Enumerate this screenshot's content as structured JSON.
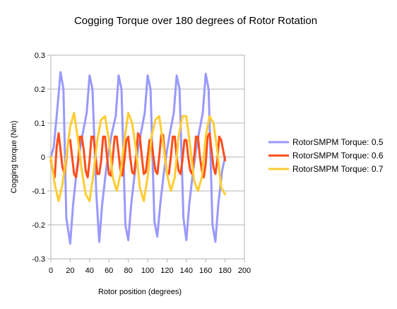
{
  "chart_data": {
    "type": "line",
    "title": "Cogging Torque over 180 degrees of Rotor Rotation",
    "xlabel": "Rotor position (degrees)",
    "ylabel": "Cogging torque (Nm)",
    "xlim": [
      0,
      200
    ],
    "ylim": [
      -0.3,
      0.3
    ],
    "xticks": [
      0,
      20,
      40,
      60,
      80,
      100,
      120,
      140,
      160,
      180,
      200
    ],
    "yticks": [
      0.3,
      0.2,
      0.1,
      0,
      -0.1,
      -0.2,
      -0.3
    ],
    "xtick_labels": [
      "0",
      "20",
      "40",
      "60",
      "80",
      "100",
      "120",
      "140",
      "160",
      "180",
      "200"
    ],
    "ytick_labels": [
      "0.3",
      "0.2",
      "0.1",
      "0",
      "-0.1",
      "-0.2",
      "-0.3"
    ],
    "grid": "horizontal gridlines",
    "legend_position": "right",
    "series": [
      {
        "name": "RotorSMPM Torque: 0.5",
        "color": "#9999ff",
        "x": [
          0,
          3,
          6,
          10,
          13,
          16,
          20,
          23,
          27,
          30,
          33,
          37,
          40,
          43,
          47,
          50,
          53,
          57,
          60,
          63,
          67,
          70,
          73,
          77,
          80,
          83,
          87,
          90,
          93,
          97,
          100,
          103,
          107,
          110,
          113,
          117,
          120,
          123,
          127,
          130,
          133,
          137,
          140,
          143,
          147,
          150,
          153,
          157,
          160,
          163,
          167,
          170,
          173,
          177,
          180
        ],
        "values": [
          0,
          0.03,
          0.12,
          0.25,
          0.2,
          -0.18,
          -0.255,
          -0.14,
          -0.03,
          0.02,
          0.07,
          0.13,
          0.24,
          0.2,
          -0.11,
          -0.25,
          -0.14,
          -0.04,
          0.02,
          0.07,
          0.12,
          0.24,
          0.2,
          -0.2,
          -0.245,
          -0.14,
          -0.04,
          0.02,
          0.07,
          0.13,
          0.24,
          0.2,
          -0.19,
          -0.235,
          -0.14,
          -0.04,
          0.02,
          0.07,
          0.13,
          0.24,
          0.2,
          -0.18,
          -0.245,
          -0.14,
          -0.04,
          0.02,
          0.07,
          0.13,
          0.245,
          0.2,
          -0.2,
          -0.25,
          -0.14,
          -0.04,
          0
        ]
      },
      {
        "name": "RotorSMPM Torque: 0.6",
        "color": "#ff4d1a",
        "x": [
          0,
          2,
          4,
          6,
          8,
          10,
          12,
          14,
          16,
          18,
          20,
          22,
          24,
          26,
          28,
          30,
          32,
          34,
          36,
          38,
          40,
          42,
          44,
          46,
          48,
          50,
          52,
          54,
          56,
          58,
          60,
          62,
          64,
          66,
          68,
          70,
          72,
          74,
          76,
          78,
          80,
          82,
          84,
          86,
          88,
          90,
          92,
          94,
          96,
          98,
          100,
          102,
          104,
          106,
          108,
          110,
          112,
          114,
          116,
          118,
          120,
          122,
          124,
          126,
          128,
          130,
          132,
          134,
          136,
          138,
          140,
          142,
          144,
          146,
          148,
          150,
          152,
          154,
          156,
          158,
          160,
          162,
          164,
          166,
          168,
          170,
          172,
          174,
          176,
          178,
          180
        ],
        "values": [
          -0.01,
          -0.04,
          -0.06,
          0.03,
          0.07,
          0.02,
          -0.03,
          -0.05,
          -0.01,
          0.05,
          0.05,
          0.0,
          -0.05,
          -0.06,
          -0.02,
          0.06,
          0.06,
          0.02,
          -0.04,
          -0.06,
          -0.01,
          0.06,
          0.06,
          0.01,
          -0.05,
          -0.05,
          -0.01,
          0.06,
          0.06,
          0.0,
          -0.05,
          -0.055,
          0.0,
          0.06,
          0.06,
          0.01,
          -0.04,
          -0.055,
          -0.01,
          0.05,
          0.06,
          0.0,
          -0.045,
          -0.05,
          0.0,
          0.07,
          0.06,
          0.0,
          -0.05,
          -0.045,
          0.0,
          0.05,
          0.05,
          0.0,
          -0.04,
          -0.05,
          0.0,
          0.065,
          0.065,
          0.0,
          -0.05,
          -0.05,
          0.0,
          0.06,
          0.06,
          0.0,
          -0.04,
          -0.05,
          -0.01,
          0.05,
          0.05,
          0.0,
          -0.04,
          -0.05,
          0.0,
          0.06,
          0.06,
          0.0,
          -0.04,
          -0.06,
          -0.02,
          0.06,
          0.07,
          0.02,
          -0.03,
          -0.05,
          -0.01,
          0.06,
          0.05,
          0.02,
          -0.01
        ]
      },
      {
        "name": "RotorSMPM Torque: 0.7",
        "color": "#ffcc33",
        "x": [
          0,
          4,
          8,
          12,
          16,
          20,
          24,
          28,
          32,
          36,
          40,
          44,
          48,
          52,
          56,
          60,
          64,
          68,
          72,
          76,
          80,
          84,
          88,
          92,
          96,
          100,
          104,
          108,
          112,
          116,
          120,
          124,
          128,
          132,
          136,
          140,
          144,
          148,
          152,
          156,
          160,
          164,
          168,
          172,
          176,
          180
        ],
        "values": [
          0,
          -0.08,
          -0.13,
          -0.08,
          0.0,
          0.09,
          0.13,
          0.05,
          -0.04,
          -0.11,
          -0.13,
          -0.05,
          0.05,
          0.11,
          0.12,
          0.05,
          -0.06,
          -0.1,
          -0.05,
          0.05,
          0.13,
          0.1,
          0.02,
          -0.09,
          -0.13,
          -0.06,
          0.06,
          0.11,
          0.12,
          0.04,
          -0.05,
          -0.1,
          -0.06,
          0.06,
          0.12,
          0.12,
          0.03,
          -0.07,
          -0.1,
          -0.06,
          0.06,
          0.12,
          0.1,
          0.02,
          -0.09,
          -0.11
        ]
      }
    ]
  }
}
